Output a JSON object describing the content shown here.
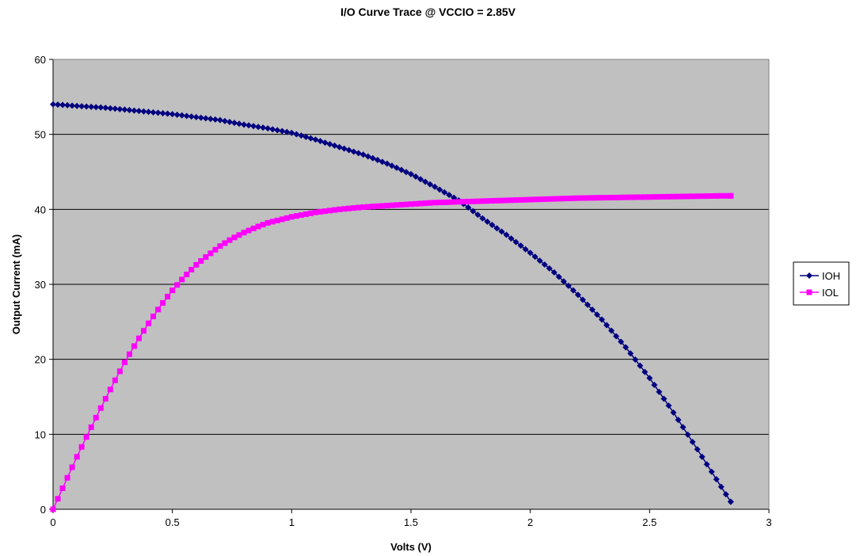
{
  "chart_data": {
    "type": "scatter",
    "title": "I/O Curve Trace @ VCCIO = 2.85V",
    "xlabel": "Volts (V)",
    "ylabel": "Output Current (mA)",
    "xlim": [
      0,
      3
    ],
    "ylim": [
      0,
      60
    ],
    "x_ticks": [
      "0",
      "0.5",
      "1",
      "1.5",
      "2",
      "2.5",
      "3"
    ],
    "y_ticks": [
      "0",
      "10",
      "20",
      "30",
      "40",
      "50",
      "60"
    ],
    "grid": "horizontal major gridlines",
    "plot_background": "#c0c0c0",
    "legend_position": "right",
    "legend": [
      "IOH",
      "IOL"
    ],
    "series": [
      {
        "name": "IOH",
        "color": "#000080",
        "marker": "diamond",
        "x": [
          0,
          0.1,
          0.2,
          0.3,
          0.4,
          0.5,
          0.6,
          0.7,
          0.8,
          0.9,
          1.0,
          1.1,
          1.2,
          1.3,
          1.4,
          1.5,
          1.6,
          1.7,
          1.8,
          1.9,
          2.0,
          2.1,
          2.2,
          2.3,
          2.4,
          2.5,
          2.6,
          2.7,
          2.8,
          2.84
        ],
        "y": [
          54.0,
          53.8,
          53.6,
          53.3,
          53.0,
          52.7,
          52.3,
          51.9,
          51.3,
          50.8,
          50.2,
          49.3,
          48.3,
          47.3,
          46.1,
          44.7,
          43.0,
          41.2,
          38.8,
          36.6,
          34.2,
          31.6,
          28.6,
          25.3,
          21.6,
          17.5,
          12.9,
          8.0,
          3.0,
          1.0
        ]
      },
      {
        "name": "IOL",
        "color": "#ff00ff",
        "marker": "square",
        "x": [
          0,
          0.05,
          0.1,
          0.15,
          0.2,
          0.25,
          0.3,
          0.35,
          0.4,
          0.45,
          0.5,
          0.55,
          0.6,
          0.65,
          0.7,
          0.75,
          0.8,
          0.85,
          0.9,
          0.95,
          1.0,
          1.1,
          1.2,
          1.3,
          1.4,
          1.5,
          1.6,
          1.8,
          2.0,
          2.2,
          2.4,
          2.6,
          2.8,
          2.84
        ],
        "y": [
          0,
          3.5,
          7.0,
          10.3,
          13.5,
          16.6,
          19.6,
          22.3,
          24.8,
          27.1,
          29.2,
          31.0,
          32.6,
          33.9,
          35.1,
          36.1,
          36.9,
          37.6,
          38.2,
          38.6,
          39.0,
          39.6,
          40.0,
          40.3,
          40.5,
          40.7,
          40.9,
          41.1,
          41.3,
          41.5,
          41.6,
          41.7,
          41.8,
          41.8
        ]
      }
    ]
  }
}
